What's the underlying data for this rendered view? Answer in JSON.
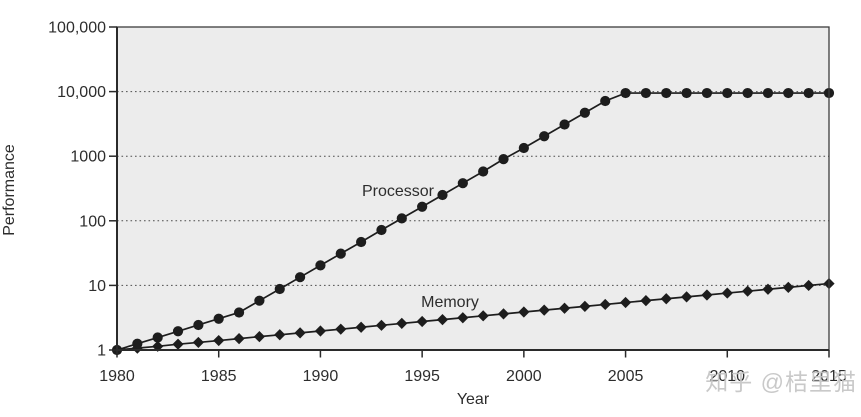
{
  "chart_data": {
    "type": "line",
    "title": "",
    "xlabel": "Year",
    "ylabel": "Performance",
    "y_scale": "log",
    "xlim": [
      1980,
      2015
    ],
    "ylim": [
      1,
      100000
    ],
    "grid": "horizontal dotted lines at each power of ten",
    "legend": "inline labels beside each line",
    "x_ticks": [
      {
        "value": 1980,
        "label": "1980"
      },
      {
        "value": 1985,
        "label": "1985"
      },
      {
        "value": 1990,
        "label": "1990"
      },
      {
        "value": 1995,
        "label": "1995"
      },
      {
        "value": 2000,
        "label": "2000"
      },
      {
        "value": 2005,
        "label": "2005"
      },
      {
        "value": 2010,
        "label": "2010"
      },
      {
        "value": 2015,
        "label": "2015"
      }
    ],
    "y_ticks": [
      {
        "value": 1,
        "label": "1"
      },
      {
        "value": 10,
        "label": "10"
      },
      {
        "value": 100,
        "label": "100"
      },
      {
        "value": 1000,
        "label": "1000"
      },
      {
        "value": 10000,
        "label": "10,000"
      },
      {
        "value": 100000,
        "label": "100,000"
      }
    ],
    "years": [
      1980,
      1981,
      1982,
      1983,
      1984,
      1985,
      1986,
      1987,
      1988,
      1989,
      1990,
      1991,
      1992,
      1993,
      1994,
      1995,
      1996,
      1997,
      1998,
      1999,
      2000,
      2001,
      2002,
      2003,
      2004,
      2005,
      2006,
      2007,
      2008,
      2009,
      2010,
      2011,
      2012,
      2013,
      2014,
      2015
    ],
    "series": [
      {
        "name": "Processor",
        "marker": "circle",
        "values": [
          1,
          1.25,
          1.56,
          1.95,
          2.44,
          3.05,
          3.81,
          5.8,
          8.8,
          13.4,
          20.4,
          31,
          47,
          72,
          109,
          165,
          251,
          382,
          580,
          900,
          1341,
          2038,
          3098,
          4709,
          7158,
          9500,
          9500,
          9500,
          9500,
          9500,
          9500,
          9500,
          9500,
          9500,
          9500,
          9500
        ]
      },
      {
        "name": "Memory",
        "marker": "diamond",
        "values": [
          1,
          1.07,
          1.14,
          1.23,
          1.31,
          1.4,
          1.5,
          1.61,
          1.72,
          1.84,
          1.97,
          2.1,
          2.25,
          2.41,
          2.58,
          2.76,
          2.95,
          3.16,
          3.38,
          3.62,
          3.87,
          4.14,
          4.43,
          4.74,
          5.07,
          5.43,
          5.81,
          6.21,
          6.65,
          7.11,
          7.61,
          8.14,
          8.71,
          9.32,
          9.98,
          10.67
        ]
      }
    ]
  },
  "watermark": {
    "text": "知乎 @桔里猫",
    "color": "#c5c5c5"
  },
  "colors": {
    "plot_bg": "#ececec",
    "line": "#1d1d1d",
    "marker": "#1d1d1d",
    "frame": "#3c3c3c",
    "axis": "#2a2a2a",
    "grid": "#4d4d4d",
    "tick_text": "#2d2d2d"
  }
}
